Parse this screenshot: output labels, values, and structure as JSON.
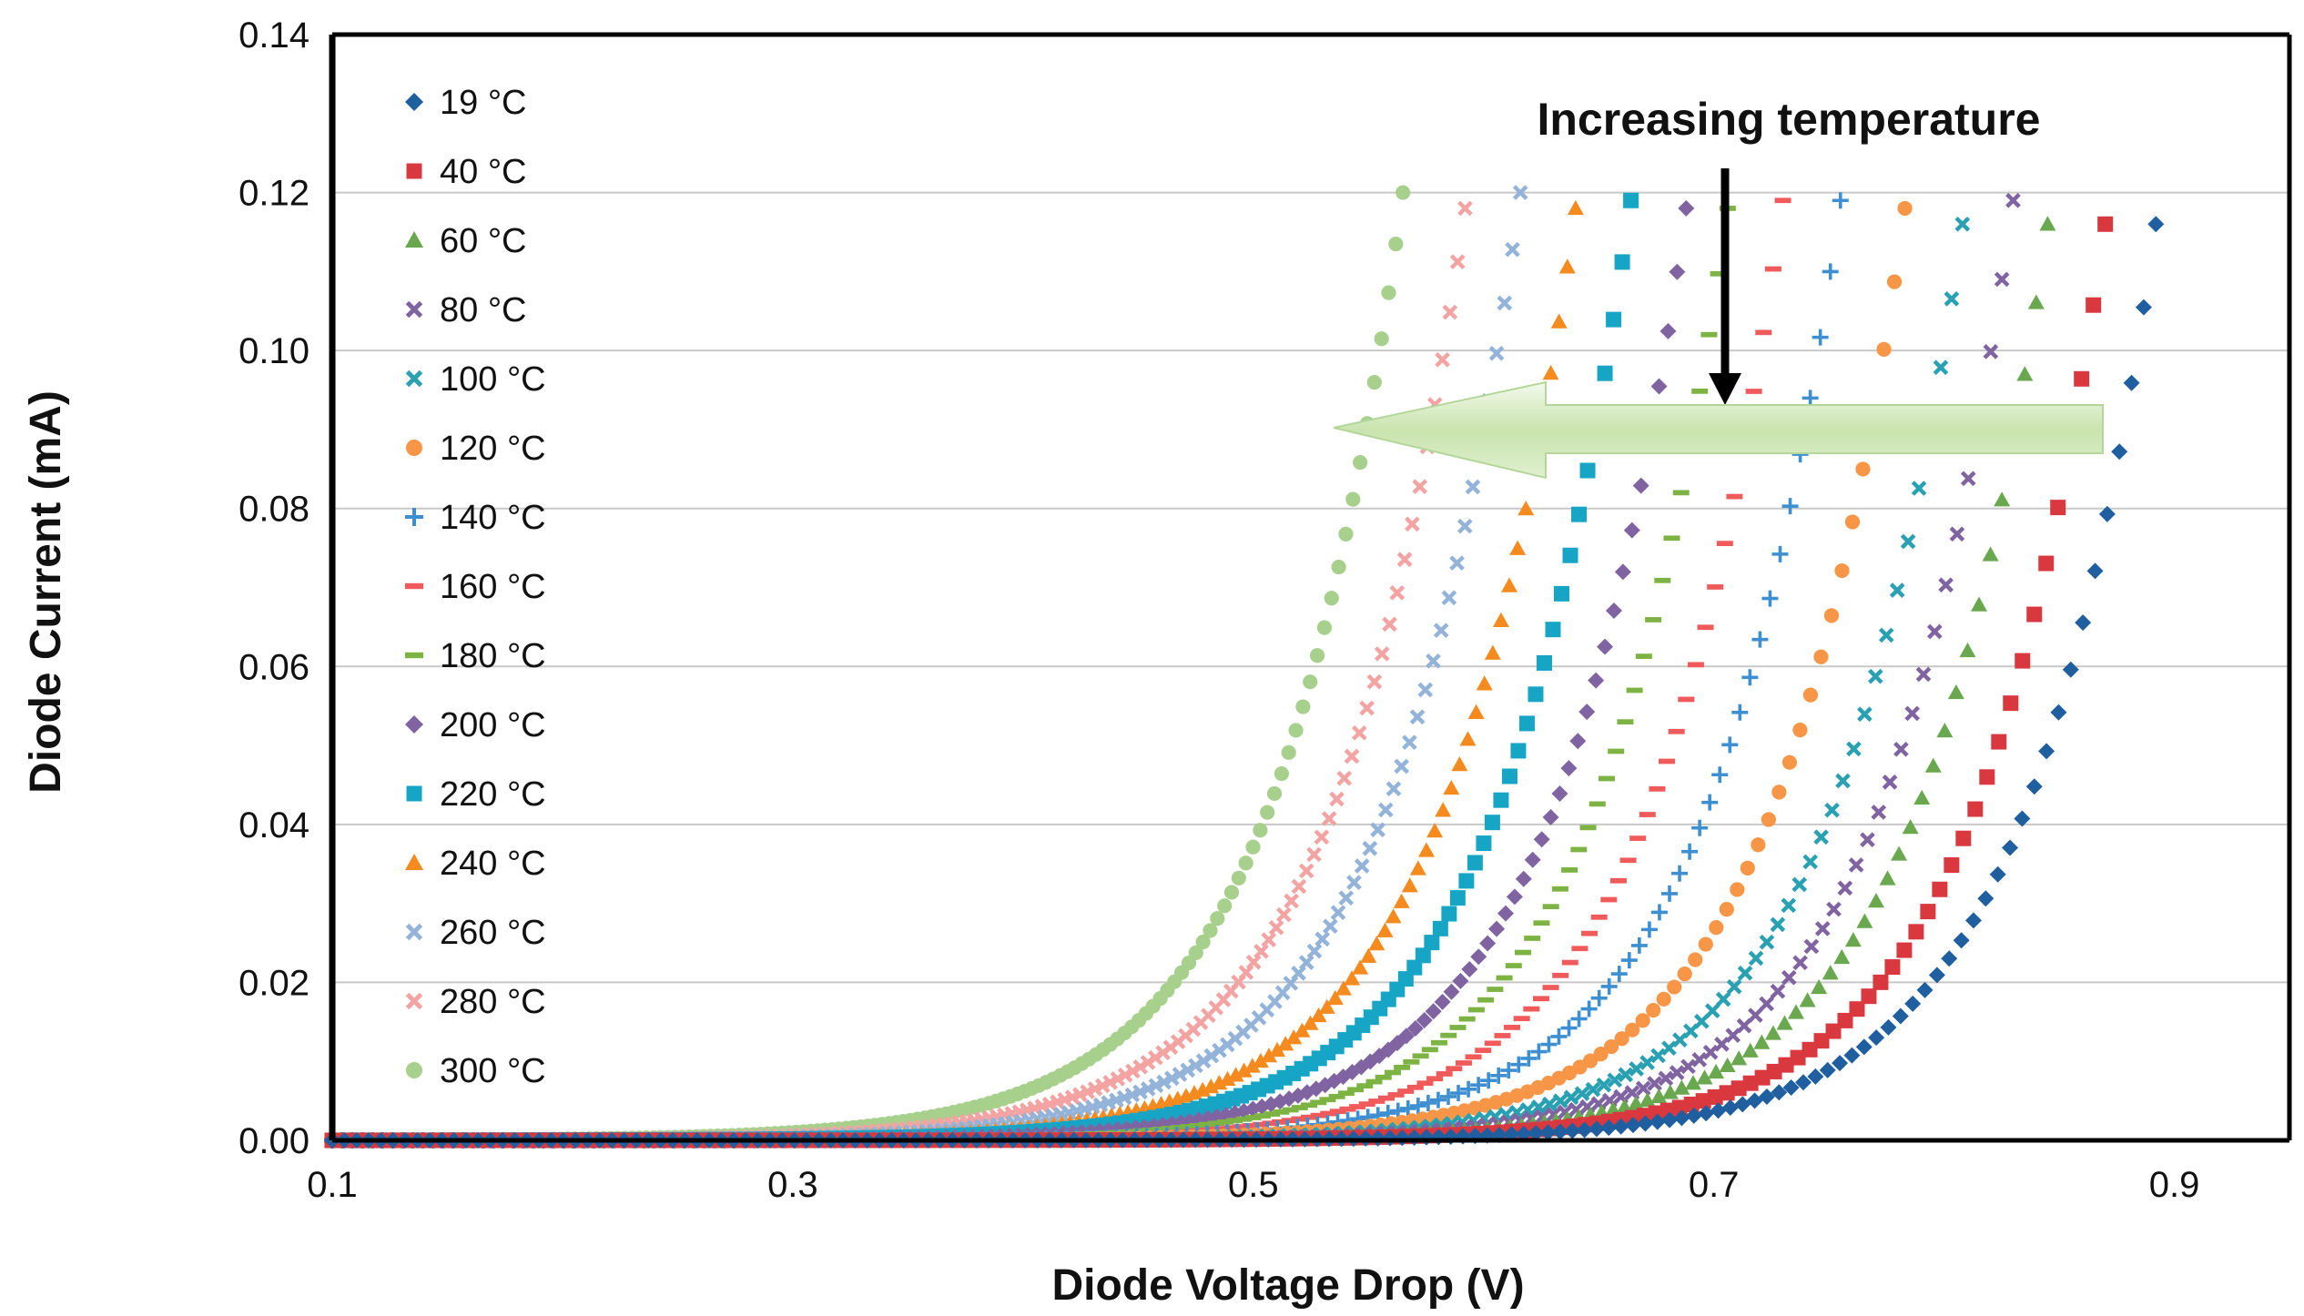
{
  "chart_data": {
    "type": "scatter",
    "title": "",
    "xlabel": "Diode Voltage Drop (V)",
    "ylabel": "Diode Current (mA)",
    "xlim": [
      0.1,
      0.95
    ],
    "ylim": [
      0,
      0.14
    ],
    "x_ticks": [
      "0.1",
      "0.3",
      "0.5",
      "0.7",
      "0.9"
    ],
    "y_ticks": [
      "0.00",
      "0.02",
      "0.04",
      "0.06",
      "0.08",
      "0.10",
      "0.12",
      "0.14"
    ],
    "x_tick_values": [
      0.1,
      0.3,
      0.5,
      0.7,
      0.9
    ],
    "y_tick_values": [
      0,
      0.02,
      0.04,
      0.06,
      0.08,
      0.1,
      0.12,
      0.14
    ],
    "grid": true,
    "legend_position": "top-left",
    "annotation": "Increasing temperature",
    "series": [
      {
        "name": "19 °C",
        "color": "#1f5fa0",
        "marker": "diamond",
        "v_end": 0.892,
        "i_end": 0.116
      },
      {
        "name": "40 °C",
        "color": "#d9393e",
        "marker": "square",
        "v_end": 0.87,
        "i_end": 0.116
      },
      {
        "name": "60 °C",
        "color": "#6aa84f",
        "marker": "triangle",
        "v_end": 0.845,
        "i_end": 0.116
      },
      {
        "name": "80 °C",
        "color": "#8064a2",
        "marker": "x",
        "v_end": 0.83,
        "i_end": 0.119
      },
      {
        "name": "100 °C",
        "color": "#2aa1b3",
        "marker": "x",
        "v_end": 0.808,
        "i_end": 0.116
      },
      {
        "name": "120 °C",
        "color": "#f79646",
        "marker": "circle",
        "v_end": 0.783,
        "i_end": 0.118
      },
      {
        "name": "140 °C",
        "color": "#3d8fd1",
        "marker": "plus",
        "v_end": 0.755,
        "i_end": 0.119
      },
      {
        "name": "160 °C",
        "color": "#f05a5a",
        "marker": "dash",
        "v_end": 0.73,
        "i_end": 0.119
      },
      {
        "name": "180 °C",
        "color": "#7cb342",
        "marker": "dash",
        "v_end": 0.706,
        "i_end": 0.118
      },
      {
        "name": "200 °C",
        "color": "#8064a2",
        "marker": "diamond",
        "v_end": 0.688,
        "i_end": 0.118
      },
      {
        "name": "220 °C",
        "color": "#17a5c6",
        "marker": "square",
        "v_end": 0.664,
        "i_end": 0.119
      },
      {
        "name": "240 °C",
        "color": "#f58a1f",
        "marker": "triangle",
        "v_end": 0.64,
        "i_end": 0.118
      },
      {
        "name": "260 °C",
        "color": "#93b3d9",
        "marker": "x",
        "v_end": 0.616,
        "i_end": 0.12
      },
      {
        "name": "280 °C",
        "color": "#f4a3a3",
        "marker": "x",
        "v_end": 0.592,
        "i_end": 0.118
      },
      {
        "name": "300 °C",
        "color": "#a8d08d",
        "marker": "circle",
        "v_end": 0.565,
        "i_end": 0.12
      }
    ]
  }
}
